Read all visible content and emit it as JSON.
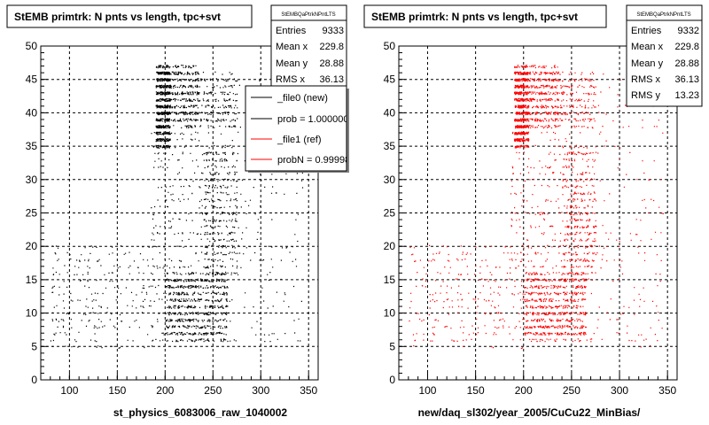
{
  "chart_data": [
    {
      "type": "scatter",
      "title": "StEMB primtrk: N pnts vs length, tpc+svt",
      "xlabel": "st_physics_6083006_raw_1040002",
      "ylabel": "",
      "xlim": [
        70,
        360
      ],
      "ylim": [
        0,
        50
      ],
      "xticks": [
        "100",
        "150",
        "200",
        "250",
        "300",
        "350"
      ],
      "yticks": [
        "0",
        "5",
        "10",
        "15",
        "20",
        "25",
        "30",
        "35",
        "40",
        "45",
        "50"
      ],
      "grid": true,
      "marker_color": "#000000",
      "stats": {
        "name": "StEMBQaPtrkNPntLTS",
        "rows": [
          {
            "label": "Entries",
            "value": "9333"
          },
          {
            "label": "Mean x",
            "value": "229.8"
          },
          {
            "label": "Mean y",
            "value": "28.88"
          },
          {
            "label": "RMS x",
            "value": "36.13"
          }
        ]
      },
      "legend": {
        "position": "top-right",
        "entries": [
          {
            "label": "_file0 (new)",
            "color": "#000000"
          },
          {
            "label": "prob = 1.000000",
            "color": "#000000"
          },
          {
            "label": "_file1 (ref)",
            "color": "#ff0000"
          },
          {
            "label": "probN = 0.99998",
            "color": "#ff0000"
          }
        ]
      },
      "density_regions": [
        {
          "x": [
            190,
            205
          ],
          "y": [
            35,
            47
          ],
          "weight": 0.26
        },
        {
          "x": [
            205,
            235
          ],
          "y": [
            38,
            47
          ],
          "weight": 0.12
        },
        {
          "x": [
            235,
            275
          ],
          "y": [
            38,
            46
          ],
          "weight": 0.06
        },
        {
          "x": [
            185,
            260
          ],
          "y": [
            15,
            38
          ],
          "weight": 0.08
        },
        {
          "x": [
            240,
            275
          ],
          "y": [
            15,
            35
          ],
          "weight": 0.1
        },
        {
          "x": [
            200,
            265
          ],
          "y": [
            6,
            16
          ],
          "weight": 0.24
        },
        {
          "x": [
            80,
            200
          ],
          "y": [
            5,
            20
          ],
          "weight": 0.08
        },
        {
          "x": [
            260,
            345
          ],
          "y": [
            5,
            46
          ],
          "weight": 0.06
        }
      ]
    },
    {
      "type": "scatter",
      "title": "StEMB primtrk: N pnts vs length, tpc+svt",
      "xlabel": "new/daq_sl302/year_2005/CuCu22_MinBias/",
      "ylabel": "",
      "xlim": [
        70,
        360
      ],
      "ylim": [
        0,
        50
      ],
      "xticks": [
        "100",
        "150",
        "200",
        "250",
        "300",
        "350"
      ],
      "yticks": [
        "0",
        "5",
        "10",
        "15",
        "20",
        "25",
        "30",
        "35",
        "40",
        "45",
        "50"
      ],
      "grid": true,
      "marker_color": "#ff0000",
      "stats": {
        "name": "StEMBQaPtrkNPntLTS",
        "rows": [
          {
            "label": "Entries",
            "value": "9332"
          },
          {
            "label": "Mean x",
            "value": "229.8"
          },
          {
            "label": "Mean y",
            "value": "28.88"
          },
          {
            "label": "RMS x",
            "value": "36.13"
          },
          {
            "label": "RMS y",
            "value": "13.23"
          }
        ]
      },
      "density_regions": [
        {
          "x": [
            190,
            205
          ],
          "y": [
            35,
            47
          ],
          "weight": 0.26
        },
        {
          "x": [
            205,
            235
          ],
          "y": [
            38,
            47
          ],
          "weight": 0.12
        },
        {
          "x": [
            235,
            275
          ],
          "y": [
            38,
            46
          ],
          "weight": 0.06
        },
        {
          "x": [
            185,
            260
          ],
          "y": [
            15,
            38
          ],
          "weight": 0.08
        },
        {
          "x": [
            240,
            275
          ],
          "y": [
            15,
            35
          ],
          "weight": 0.1
        },
        {
          "x": [
            200,
            265
          ],
          "y": [
            6,
            16
          ],
          "weight": 0.24
        },
        {
          "x": [
            80,
            200
          ],
          "y": [
            5,
            20
          ],
          "weight": 0.08
        },
        {
          "x": [
            260,
            345
          ],
          "y": [
            5,
            46
          ],
          "weight": 0.06
        }
      ]
    }
  ]
}
